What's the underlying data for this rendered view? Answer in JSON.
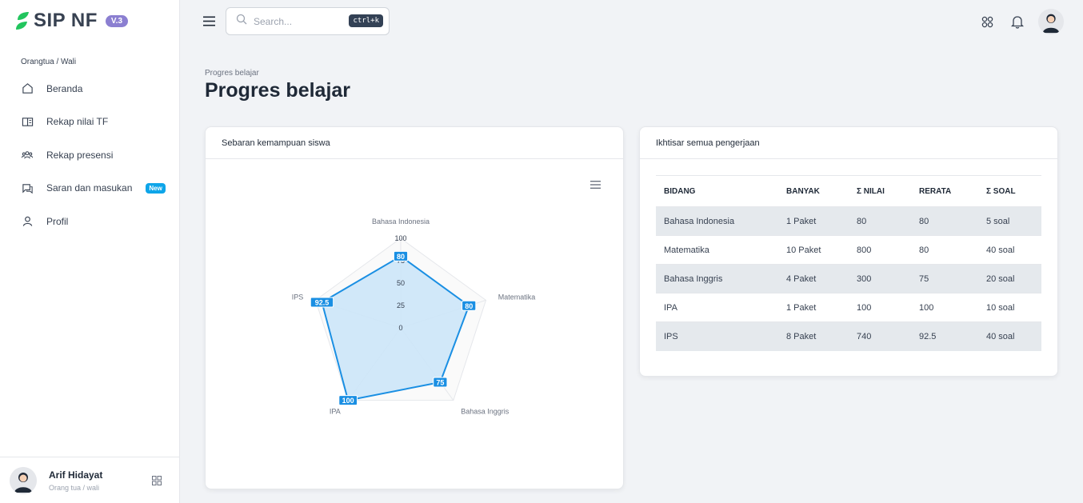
{
  "brand": {
    "name": "SIP NF",
    "version": "V.3"
  },
  "sidebar": {
    "section_label": "Orangtua / Wali",
    "items": [
      {
        "label": "Beranda",
        "icon": "home-icon"
      },
      {
        "label": "Rekap nilai TF",
        "icon": "book-icon"
      },
      {
        "label": "Rekap presensi",
        "icon": "users-icon"
      },
      {
        "label": "Saran dan masukan",
        "icon": "chat-icon",
        "badge": "New"
      },
      {
        "label": "Profil",
        "icon": "user-icon"
      }
    ],
    "user": {
      "name": "Arif Hidayat",
      "role": "Orang tua / wali"
    }
  },
  "topbar": {
    "search_placeholder": "Search...",
    "shortcut": "ctrl+k"
  },
  "page": {
    "breadcrumb": "Progres belajar",
    "title": "Progres belajar"
  },
  "chart_card": {
    "title": "Sebaran kemampuan siswa"
  },
  "chart_data": {
    "type": "radar",
    "categories": [
      "Bahasa Indonesia",
      "Matematika",
      "Bahasa Inggris",
      "IPA",
      "IPS"
    ],
    "values": [
      80,
      80,
      75,
      100,
      92.5
    ],
    "data_labels": [
      "80",
      "80",
      "75",
      "100",
      "92.5"
    ],
    "radial_ticks": [
      "0",
      "25",
      "50",
      "75",
      "100"
    ],
    "rmax": 100,
    "fill_color": "#cce5f8",
    "line_color": "#1a8fe3"
  },
  "summary_card": {
    "title": "Ikhtisar semua pengerjaan",
    "columns": [
      "BIDANG",
      "BANYAK",
      "Σ NILAI",
      "RERATA",
      "Σ SOAL"
    ],
    "rows": [
      [
        "Bahasa Indonesia",
        "1 Paket",
        "80",
        "80",
        "5 soal"
      ],
      [
        "Matematika",
        "10 Paket",
        "800",
        "80",
        "40 soal"
      ],
      [
        "Bahasa Inggris",
        "4 Paket",
        "300",
        "75",
        "20 soal"
      ],
      [
        "IPA",
        "1 Paket",
        "100",
        "100",
        "10 soal"
      ],
      [
        "IPS",
        "8 Paket",
        "740",
        "92.5",
        "40 soal"
      ]
    ]
  }
}
